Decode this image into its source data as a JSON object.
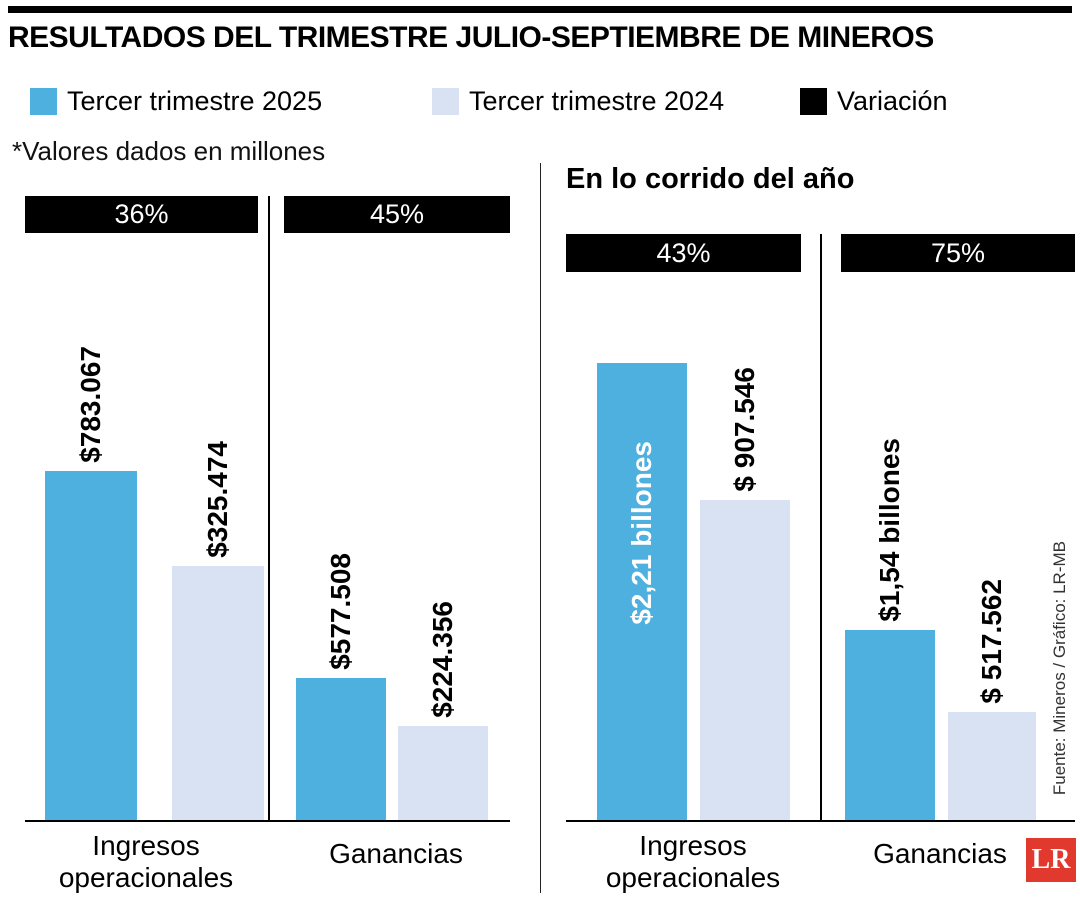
{
  "title": "RESULTADOS DEL TRIMESTRE JULIO-SEPTIEMBRE DE MINEROS",
  "note": "*Valores dados en millones",
  "legend": [
    {
      "label": "Tercer trimestre 2025",
      "color": "#4EB0DE"
    },
    {
      "label": "Tercer trimestre 2024",
      "color": "#D9E2F3"
    },
    {
      "label": "Variación",
      "color": "#000000"
    }
  ],
  "source": "Fuente: Mineros / Gráfico: LR-MB",
  "logo_text": "LR",
  "logo_color": "#E2392E",
  "chart_data": [
    {
      "type": "bar",
      "title": "",
      "unit": "millones",
      "legend_position": "top",
      "grid": false,
      "categories": [
        "Ingresos operacionales",
        "Ganancias"
      ],
      "series": [
        {
          "name": "Tercer trimestre 2025",
          "color": "#4EB0DE",
          "values": [
            783067,
            577508
          ],
          "labels": [
            "$783.067",
            "$577.508"
          ]
        },
        {
          "name": "Tercer trimestre 2024",
          "color": "#D9E2F3",
          "values": [
            325474,
            224356
          ],
          "labels": [
            "$325.474",
            "$224.356"
          ]
        }
      ],
      "variation": [
        "36%",
        "45%"
      ]
    },
    {
      "type": "bar",
      "title": "En lo corrido del año",
      "unit": "millones",
      "legend_position": "top",
      "grid": false,
      "categories": [
        "Ingresos operacionales",
        "Ganancias"
      ],
      "series": [
        {
          "name": "Tercer trimestre 2025",
          "color": "#4EB0DE",
          "values": [
            2210000,
            1540000
          ],
          "labels": [
            "$2,21 billones",
            "$1,54 billones"
          ]
        },
        {
          "name": "Tercer trimestre 2024",
          "color": "#D9E2F3",
          "values": [
            907546,
            517562
          ],
          "labels": [
            "$ 907.546",
            "$ 517.562"
          ]
        }
      ],
      "variation": [
        "43%",
        "75%"
      ]
    }
  ]
}
